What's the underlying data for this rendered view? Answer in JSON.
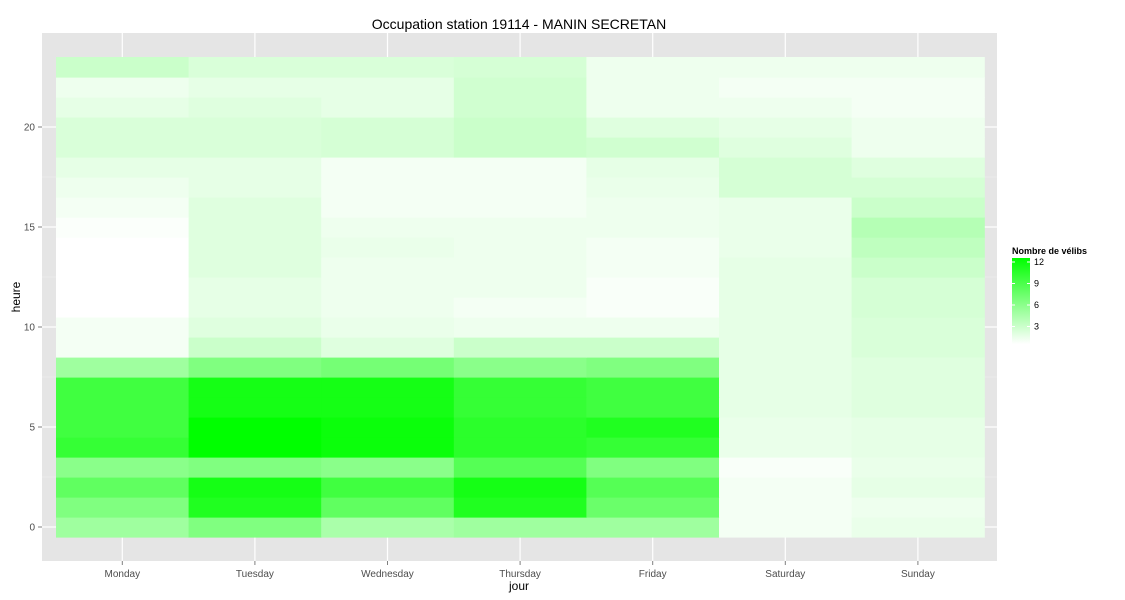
{
  "chart_data": {
    "type": "heatmap",
    "title": "Occupation station 19114 - MANIN SECRETAN",
    "xlabel": "jour",
    "ylabel": "heure",
    "x": [
      "Monday",
      "Tuesday",
      "Wednesday",
      "Thursday",
      "Friday",
      "Saturday",
      "Sunday"
    ],
    "y": [
      0,
      1,
      2,
      3,
      4,
      5,
      6,
      7,
      8,
      9,
      10,
      11,
      12,
      13,
      14,
      15,
      16,
      17,
      18,
      19,
      20,
      21,
      22,
      23
    ],
    "ylim": [
      -0.5,
      23.5
    ],
    "yticks": [
      0,
      5,
      10,
      15,
      20
    ],
    "grid": true,
    "legend": {
      "title": "Nombre de vélibs",
      "position": "right",
      "ticks": [
        3,
        6,
        9,
        12
      ],
      "range": [
        0,
        12
      ],
      "low_color": "#ffffff",
      "high_color": "#00ff00"
    },
    "values": [
      [
        4.5,
        6.0,
        4.0,
        4.5,
        4.5,
        0.5,
        1.0
      ],
      [
        6.0,
        10.5,
        7.5,
        10.5,
        7.0,
        0.5,
        0.8
      ],
      [
        7.5,
        11.0,
        9.0,
        11.0,
        8.0,
        0.5,
        1.2
      ],
      [
        5.5,
        6.0,
        5.5,
        8.0,
        6.0,
        0.3,
        1.0
      ],
      [
        9.5,
        12.0,
        11.5,
        10.0,
        9.5,
        1.0,
        1.2
      ],
      [
        9.0,
        12.0,
        11.5,
        10.0,
        10.5,
        1.0,
        1.2
      ],
      [
        9.0,
        11.0,
        11.0,
        9.5,
        9.0,
        1.2,
        1.5
      ],
      [
        9.0,
        11.0,
        11.0,
        9.5,
        9.0,
        1.2,
        1.5
      ],
      [
        4.5,
        6.0,
        6.5,
        5.5,
        6.0,
        1.2,
        1.5
      ],
      [
        0.5,
        2.5,
        1.5,
        2.5,
        2.5,
        1.2,
        1.8
      ],
      [
        0.5,
        1.5,
        1.0,
        0.8,
        0.8,
        1.2,
        1.8
      ],
      [
        0.0,
        1.2,
        0.8,
        0.5,
        0.3,
        1.2,
        2.0
      ],
      [
        0.0,
        1.2,
        0.8,
        0.8,
        0.3,
        1.2,
        2.0
      ],
      [
        0.0,
        1.5,
        0.8,
        0.8,
        0.5,
        1.2,
        2.5
      ],
      [
        0.0,
        1.5,
        1.0,
        0.8,
        0.5,
        1.0,
        3.0
      ],
      [
        0.2,
        1.5,
        0.8,
        0.8,
        0.8,
        1.0,
        3.5
      ],
      [
        0.5,
        1.5,
        0.5,
        0.5,
        0.8,
        1.0,
        2.5
      ],
      [
        0.8,
        1.2,
        0.5,
        0.5,
        1.0,
        2.0,
        2.0
      ],
      [
        1.2,
        1.2,
        0.5,
        0.5,
        1.2,
        2.0,
        1.5
      ],
      [
        1.8,
        1.8,
        2.0,
        2.5,
        2.2,
        1.5,
        0.8
      ],
      [
        1.8,
        1.8,
        2.0,
        2.5,
        1.5,
        1.2,
        0.8
      ],
      [
        1.2,
        1.5,
        1.2,
        2.2,
        0.8,
        0.8,
        0.5
      ],
      [
        0.8,
        1.2,
        1.2,
        2.2,
        0.8,
        0.5,
        0.5
      ],
      [
        2.5,
        1.8,
        1.8,
        2.0,
        0.8,
        0.8,
        0.8
      ]
    ]
  }
}
